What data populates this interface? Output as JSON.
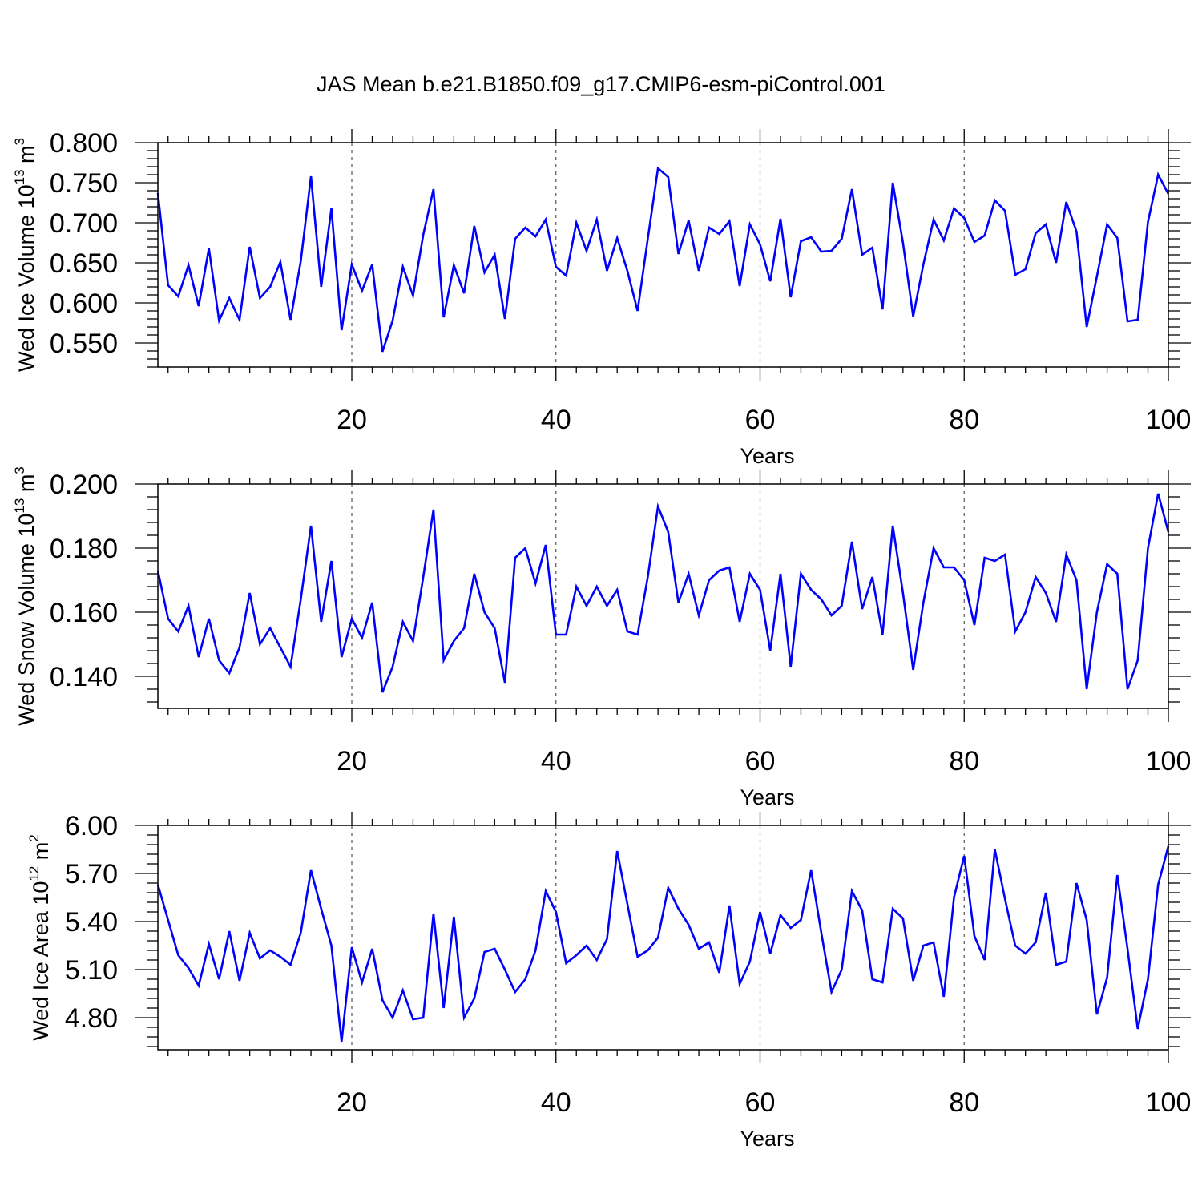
{
  "figure": {
    "title": "JAS Mean b.e21.B1850.f09_g17.CMIP6-esm-piControl.001"
  },
  "colors": {
    "series": "#0000ff",
    "axis": "#000000",
    "grid": "#555555"
  },
  "chart_data": [
    {
      "type": "line",
      "title": "JAS Mean b.e21.B1850.f09_g17.CMIP6-esm-piControl.001",
      "xlabel": "Years",
      "ylabel_prefix": "Wed Ice Volume 10",
      "ylabel_exp": "13",
      "ylabel_unit": " m",
      "ylabel_unit_exp": "3",
      "xlim": [
        1,
        100
      ],
      "ylim": [
        0.52,
        0.8
      ],
      "xticks": [
        20,
        40,
        60,
        80,
        100
      ],
      "yticks": [
        0.55,
        0.6,
        0.65,
        0.7,
        0.75,
        0.8
      ],
      "ytick_labels": [
        "0.550",
        "0.600",
        "0.650",
        "0.700",
        "0.750",
        "0.800"
      ],
      "grid": "vertical dashed at major x ticks",
      "series": [
        {
          "name": "Wed Ice Volume",
          "x_start": 1,
          "values": [
            0.737,
            0.622,
            0.608,
            0.647,
            0.596,
            0.668,
            0.578,
            0.606,
            0.579,
            0.67,
            0.606,
            0.62,
            0.651,
            0.579,
            0.652,
            0.758,
            0.62,
            0.718,
            0.566,
            0.648,
            0.615,
            0.648,
            0.539,
            0.578,
            0.645,
            0.609,
            0.685,
            0.742,
            0.582,
            0.647,
            0.612,
            0.696,
            0.638,
            0.66,
            0.58,
            0.68,
            0.694,
            0.683,
            0.704,
            0.645,
            0.634,
            0.7,
            0.665,
            0.704,
            0.64,
            0.681,
            0.64,
            0.59,
            0.68,
            0.768,
            0.757,
            0.661,
            0.703,
            0.64,
            0.694,
            0.686,
            0.702,
            0.621,
            0.698,
            0.673,
            0.627,
            0.705,
            0.607,
            0.677,
            0.682,
            0.664,
            0.665,
            0.68,
            0.742,
            0.66,
            0.669,
            0.592,
            0.75,
            0.675,
            0.583,
            0.648,
            0.704,
            0.678,
            0.718,
            0.706,
            0.676,
            0.684,
            0.728,
            0.715,
            0.635,
            0.642,
            0.687,
            0.698,
            0.65,
            0.726,
            0.689,
            0.57,
            0.633,
            0.698,
            0.681,
            0.577,
            0.579,
            0.701,
            0.76,
            0.736
          ]
        }
      ]
    },
    {
      "type": "line",
      "xlabel": "Years",
      "ylabel_prefix": "Wed Snow Volume 10",
      "ylabel_exp": "13",
      "ylabel_unit": " m",
      "ylabel_unit_exp": "3",
      "xlim": [
        1,
        100
      ],
      "ylim": [
        0.13,
        0.2
      ],
      "xticks": [
        20,
        40,
        60,
        80,
        100
      ],
      "yticks": [
        0.14,
        0.16,
        0.18,
        0.2
      ],
      "ytick_labels": [
        "0.140",
        "0.160",
        "0.180",
        "0.200"
      ],
      "grid": "vertical dashed at major x ticks",
      "series": [
        {
          "name": "Wed Snow Volume",
          "x_start": 1,
          "values": [
            0.173,
            0.158,
            0.154,
            0.162,
            0.146,
            0.158,
            0.145,
            0.141,
            0.149,
            0.166,
            0.15,
            0.155,
            0.149,
            0.143,
            0.164,
            0.187,
            0.157,
            0.176,
            0.146,
            0.158,
            0.152,
            0.163,
            0.135,
            0.143,
            0.157,
            0.151,
            0.171,
            0.192,
            0.145,
            0.151,
            0.155,
            0.172,
            0.16,
            0.155,
            0.138,
            0.177,
            0.18,
            0.169,
            0.181,
            0.153,
            0.153,
            0.168,
            0.162,
            0.168,
            0.162,
            0.167,
            0.154,
            0.153,
            0.171,
            0.193,
            0.185,
            0.163,
            0.172,
            0.159,
            0.17,
            0.173,
            0.174,
            0.157,
            0.172,
            0.167,
            0.148,
            0.172,
            0.143,
            0.172,
            0.167,
            0.164,
            0.159,
            0.162,
            0.182,
            0.161,
            0.171,
            0.153,
            0.187,
            0.166,
            0.142,
            0.163,
            0.18,
            0.174,
            0.174,
            0.17,
            0.156,
            0.177,
            0.176,
            0.178,
            0.154,
            0.16,
            0.171,
            0.166,
            0.157,
            0.178,
            0.17,
            0.136,
            0.16,
            0.175,
            0.172,
            0.136,
            0.145,
            0.18,
            0.197,
            0.185
          ]
        }
      ]
    },
    {
      "type": "line",
      "xlabel": "Years",
      "ylabel_prefix": "Wed Ice Area 10",
      "ylabel_exp": "12",
      "ylabel_unit": " m",
      "ylabel_unit_exp": "2",
      "xlim": [
        1,
        100
      ],
      "ylim": [
        4.6,
        6.0
      ],
      "xticks": [
        20,
        40,
        60,
        80,
        100
      ],
      "yticks": [
        4.8,
        5.1,
        5.4,
        5.7,
        6.0
      ],
      "ytick_labels": [
        "4.80",
        "5.10",
        "5.40",
        "5.70",
        "6.00"
      ],
      "grid": "vertical dashed at major x ticks",
      "series": [
        {
          "name": "Wed Ice Area",
          "x_start": 1,
          "values": [
            5.63,
            5.41,
            5.19,
            5.11,
            5.0,
            5.26,
            5.04,
            5.34,
            5.03,
            5.33,
            5.17,
            5.22,
            5.18,
            5.13,
            5.33,
            5.72,
            5.48,
            5.25,
            4.65,
            5.24,
            5.02,
            5.23,
            4.91,
            4.8,
            4.97,
            4.79,
            4.8,
            5.45,
            4.86,
            5.43,
            4.8,
            4.92,
            5.21,
            5.23,
            5.1,
            4.96,
            5.04,
            5.22,
            5.59,
            5.46,
            5.14,
            5.19,
            5.25,
            5.16,
            5.29,
            5.84,
            5.51,
            5.18,
            5.22,
            5.3,
            5.61,
            5.48,
            5.38,
            5.23,
            5.27,
            5.08,
            5.5,
            5.01,
            5.15,
            5.46,
            5.2,
            5.44,
            5.36,
            5.41,
            5.72,
            5.33,
            4.96,
            5.1,
            5.59,
            5.47,
            5.04,
            5.02,
            5.48,
            5.42,
            5.03,
            5.25,
            5.27,
            4.93,
            5.55,
            5.81,
            5.31,
            5.16,
            5.85,
            5.54,
            5.25,
            5.2,
            5.27,
            5.58,
            5.13,
            5.15,
            5.64,
            5.41,
            4.82,
            5.05,
            5.69,
            5.23,
            4.73,
            5.04,
            5.63,
            5.87
          ]
        }
      ]
    }
  ]
}
